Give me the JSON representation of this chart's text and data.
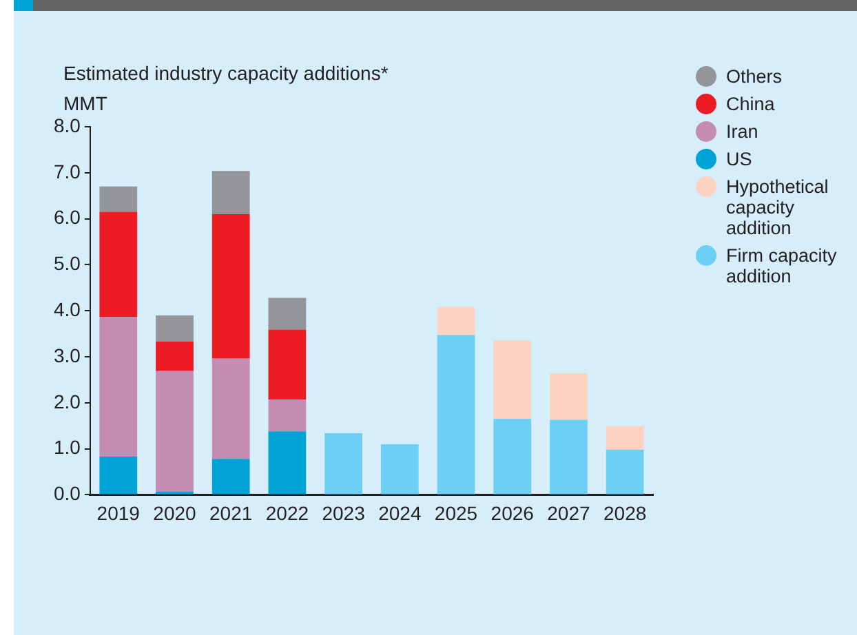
{
  "chart_data": {
    "type": "bar",
    "title": "Estimated industry capacity additions*",
    "ylabel": "MMT",
    "categories": [
      "2019",
      "2020",
      "2021",
      "2022",
      "2023",
      "2024",
      "2025",
      "2026",
      "2027",
      "2028"
    ],
    "stacked": true,
    "series": [
      {
        "name": "Firm capacity addition",
        "color": "#6dcff6",
        "values": [
          null,
          null,
          null,
          null,
          1.34,
          1.1,
          3.47,
          1.65,
          1.63,
          0.98
        ]
      },
      {
        "name": "Hypothetical capacity addition",
        "color": "#fcd3c1",
        "values": [
          null,
          null,
          null,
          null,
          null,
          null,
          0.61,
          1.7,
          1.01,
          0.51
        ]
      },
      {
        "name": "US",
        "color": "#00a3d6",
        "values": [
          0.83,
          0.07,
          0.78,
          1.38,
          null,
          null,
          null,
          null,
          null,
          null
        ]
      },
      {
        "name": "Iran",
        "color": "#c48bb4",
        "values": [
          3.04,
          2.62,
          2.18,
          0.69,
          null,
          null,
          null,
          null,
          null,
          null
        ]
      },
      {
        "name": "China",
        "color": "#ed1c24",
        "values": [
          2.28,
          0.64,
          3.14,
          1.52,
          null,
          null,
          null,
          null,
          null,
          null
        ]
      },
      {
        "name": "Others",
        "color": "#939598",
        "values": [
          0.55,
          0.57,
          0.94,
          0.69,
          null,
          null,
          null,
          null,
          null,
          null
        ]
      }
    ],
    "ylim": [
      0,
      8
    ],
    "yticks": [
      {
        "value": 0,
        "label": "0.0"
      },
      {
        "value": 1,
        "label": "1.0"
      },
      {
        "value": 2,
        "label": "2.0"
      },
      {
        "value": 3,
        "label": "3.0"
      },
      {
        "value": 4,
        "label": "4.0"
      },
      {
        "value": 5,
        "label": "5.0"
      },
      {
        "value": 6,
        "label": "6.0"
      },
      {
        "value": 7,
        "label": "7.0"
      },
      {
        "value": 8,
        "label": "8.0"
      }
    ],
    "grid": false,
    "legend": "right"
  }
}
